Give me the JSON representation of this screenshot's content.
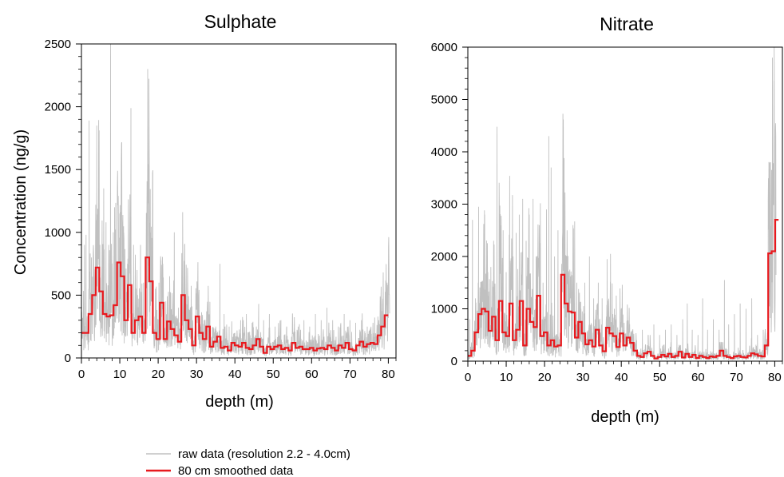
{
  "chart_data": [
    {
      "type": "line",
      "title": "Sulphate",
      "xlabel": "depth (m)",
      "ylabel": "Concentration (ng/g)",
      "xlim": [
        0,
        82
      ],
      "ylim": [
        0,
        2500
      ],
      "x_ticks": [
        "0",
        "10",
        "20",
        "30",
        "40",
        "50",
        "60",
        "70",
        "80"
      ],
      "y_ticks": [
        "0",
        "500",
        "1000",
        "1500",
        "2000",
        "2500"
      ],
      "raw_color": "#c0c0c0",
      "smoothed_color": "#e8191e",
      "raw_peaks": [
        {
          "x": 0.3,
          "y": 250
        },
        {
          "x": 0.8,
          "y": 900
        },
        {
          "x": 1.2,
          "y": 980
        },
        {
          "x": 2.0,
          "y": 1890
        },
        {
          "x": 2.6,
          "y": 800
        },
        {
          "x": 4.0,
          "y": 1850
        },
        {
          "x": 4.8,
          "y": 900
        },
        {
          "x": 5.8,
          "y": 1350
        },
        {
          "x": 6.4,
          "y": 1080
        },
        {
          "x": 7.1,
          "y": 900
        },
        {
          "x": 7.6,
          "y": 2500
        },
        {
          "x": 8.3,
          "y": 1000
        },
        {
          "x": 9.0,
          "y": 750
        },
        {
          "x": 10.0,
          "y": 1150
        },
        {
          "x": 11.0,
          "y": 800
        },
        {
          "x": 12.0,
          "y": 750
        },
        {
          "x": 12.9,
          "y": 1990
        },
        {
          "x": 13.6,
          "y": 900
        },
        {
          "x": 14.5,
          "y": 700
        },
        {
          "x": 15.4,
          "y": 900
        },
        {
          "x": 16.2,
          "y": 600
        },
        {
          "x": 17.2,
          "y": 500
        },
        {
          "x": 18.2,
          "y": 450
        },
        {
          "x": 19.3,
          "y": 550
        },
        {
          "x": 20.2,
          "y": 600
        },
        {
          "x": 21.2,
          "y": 750
        },
        {
          "x": 22.0,
          "y": 450
        },
        {
          "x": 23.0,
          "y": 650
        },
        {
          "x": 24.2,
          "y": 1000
        },
        {
          "x": 25.3,
          "y": 400
        },
        {
          "x": 26.2,
          "y": 350
        },
        {
          "x": 27.5,
          "y": 400
        },
        {
          "x": 29.0,
          "y": 300
        },
        {
          "x": 30.5,
          "y": 250
        },
        {
          "x": 32.0,
          "y": 300
        },
        {
          "x": 33.5,
          "y": 250
        },
        {
          "x": 35.0,
          "y": 250
        },
        {
          "x": 36.1,
          "y": 750
        },
        {
          "x": 37.2,
          "y": 350
        },
        {
          "x": 38.5,
          "y": 250
        },
        {
          "x": 40.0,
          "y": 200
        },
        {
          "x": 41.5,
          "y": 300
        },
        {
          "x": 43.0,
          "y": 350
        },
        {
          "x": 44.5,
          "y": 280
        },
        {
          "x": 46.2,
          "y": 430
        },
        {
          "x": 47.5,
          "y": 300
        },
        {
          "x": 49.0,
          "y": 350
        },
        {
          "x": 50.5,
          "y": 250
        },
        {
          "x": 52.0,
          "y": 300
        },
        {
          "x": 53.5,
          "y": 250
        },
        {
          "x": 55.0,
          "y": 350
        },
        {
          "x": 56.5,
          "y": 250
        },
        {
          "x": 58.0,
          "y": 300
        },
        {
          "x": 59.5,
          "y": 250
        },
        {
          "x": 61.0,
          "y": 350
        },
        {
          "x": 62.5,
          "y": 300
        },
        {
          "x": 64.0,
          "y": 400
        },
        {
          "x": 65.5,
          "y": 300
        },
        {
          "x": 67.0,
          "y": 250
        },
        {
          "x": 68.5,
          "y": 350
        },
        {
          "x": 70.0,
          "y": 300
        },
        {
          "x": 71.5,
          "y": 280
        },
        {
          "x": 73.0,
          "y": 300
        },
        {
          "x": 74.5,
          "y": 250
        },
        {
          "x": 76.0,
          "y": 280
        },
        {
          "x": 77.5,
          "y": 300
        },
        {
          "x": 78.6,
          "y": 250
        },
        {
          "x": 79.3,
          "y": 500
        },
        {
          "x": 79.8,
          "y": 420
        }
      ],
      "smoothed_steps": [
        200,
        200,
        350,
        500,
        720,
        530,
        350,
        330,
        340,
        420,
        760,
        650,
        300,
        580,
        200,
        300,
        330,
        200,
        800,
        610,
        200,
        150,
        440,
        150,
        290,
        230,
        180,
        130,
        500,
        300,
        230,
        100,
        330,
        200,
        150,
        250,
        90,
        130,
        170,
        80,
        90,
        60,
        120,
        100,
        90,
        120,
        80,
        70,
        100,
        150,
        90,
        40,
        90,
        70,
        90,
        100,
        70,
        80,
        60,
        120,
        80,
        90,
        70,
        70,
        80,
        60,
        75,
        80,
        70,
        100,
        80,
        60,
        100,
        80,
        120,
        70,
        60,
        100,
        130,
        90,
        110,
        120,
        110,
        180,
        250,
        340
      ],
      "smoothed_step_m": 0.93
    },
    {
      "type": "line",
      "title": "Nitrate",
      "xlabel": "depth (m)",
      "ylabel": "",
      "xlim": [
        0,
        82
      ],
      "ylim": [
        0,
        6000
      ],
      "x_ticks": [
        "0",
        "10",
        "20",
        "30",
        "40",
        "50",
        "60",
        "70",
        "80"
      ],
      "y_ticks": [
        "0",
        "1000",
        "2000",
        "3000",
        "4000",
        "5000",
        "6000"
      ],
      "raw_color": "#c0c0c0",
      "smoothed_color": "#e8191e",
      "raw_peaks": [
        {
          "x": 0.5,
          "y": 800
        },
        {
          "x": 1.2,
          "y": 2700
        },
        {
          "x": 2.0,
          "y": 1200
        },
        {
          "x": 2.8,
          "y": 2950
        },
        {
          "x": 3.6,
          "y": 1500
        },
        {
          "x": 4.4,
          "y": 2800
        },
        {
          "x": 5.2,
          "y": 1700
        },
        {
          "x": 6.0,
          "y": 1800
        },
        {
          "x": 6.8,
          "y": 2200
        },
        {
          "x": 7.6,
          "y": 4480
        },
        {
          "x": 8.4,
          "y": 2000
        },
        {
          "x": 9.2,
          "y": 2500
        },
        {
          "x": 10.0,
          "y": 1700
        },
        {
          "x": 10.9,
          "y": 3540
        },
        {
          "x": 11.8,
          "y": 2000
        },
        {
          "x": 12.6,
          "y": 2450
        },
        {
          "x": 13.4,
          "y": 2800
        },
        {
          "x": 14.3,
          "y": 3100
        },
        {
          "x": 15.2,
          "y": 2300
        },
        {
          "x": 16.0,
          "y": 2800
        },
        {
          "x": 17.0,
          "y": 3100
        },
        {
          "x": 17.8,
          "y": 2000
        },
        {
          "x": 18.6,
          "y": 2600
        },
        {
          "x": 19.6,
          "y": 1500
        },
        {
          "x": 20.5,
          "y": 2900
        },
        {
          "x": 21.1,
          "y": 4300
        },
        {
          "x": 21.7,
          "y": 3700
        },
        {
          "x": 22.6,
          "y": 2000
        },
        {
          "x": 23.5,
          "y": 2500
        },
        {
          "x": 24.4,
          "y": 1500
        },
        {
          "x": 25.3,
          "y": 2000
        },
        {
          "x": 26.3,
          "y": 1700
        },
        {
          "x": 27.3,
          "y": 1200
        },
        {
          "x": 28.4,
          "y": 1500
        },
        {
          "x": 29.5,
          "y": 1000
        },
        {
          "x": 30.5,
          "y": 1500
        },
        {
          "x": 31.7,
          "y": 2000
        },
        {
          "x": 32.8,
          "y": 1200
        },
        {
          "x": 34.0,
          "y": 1500
        },
        {
          "x": 35.0,
          "y": 1200
        },
        {
          "x": 36.3,
          "y": 1950
        },
        {
          "x": 37.2,
          "y": 2050
        },
        {
          "x": 38.2,
          "y": 1000
        },
        {
          "x": 39.5,
          "y": 600
        },
        {
          "x": 41.0,
          "y": 400
        },
        {
          "x": 42.5,
          "y": 500
        },
        {
          "x": 44.0,
          "y": 400
        },
        {
          "x": 45.5,
          "y": 600
        },
        {
          "x": 47.0,
          "y": 500
        },
        {
          "x": 48.5,
          "y": 700
        },
        {
          "x": 50.0,
          "y": 500
        },
        {
          "x": 51.5,
          "y": 600
        },
        {
          "x": 53.0,
          "y": 700
        },
        {
          "x": 54.5,
          "y": 500
        },
        {
          "x": 56.0,
          "y": 800
        },
        {
          "x": 57.2,
          "y": 1100
        },
        {
          "x": 58.5,
          "y": 600
        },
        {
          "x": 60.0,
          "y": 500
        },
        {
          "x": 61.2,
          "y": 1200
        },
        {
          "x": 62.5,
          "y": 600
        },
        {
          "x": 64.0,
          "y": 800
        },
        {
          "x": 65.5,
          "y": 600
        },
        {
          "x": 66.9,
          "y": 1550
        },
        {
          "x": 68.0,
          "y": 700
        },
        {
          "x": 69.5,
          "y": 900
        },
        {
          "x": 71.0,
          "y": 1100
        },
        {
          "x": 72.5,
          "y": 1000
        },
        {
          "x": 74.0,
          "y": 1200
        },
        {
          "x": 75.5,
          "y": 500
        },
        {
          "x": 77.0,
          "y": 600
        },
        {
          "x": 78.3,
          "y": 900
        },
        {
          "x": 78.9,
          "y": 3760
        },
        {
          "x": 79.4,
          "y": 5800
        },
        {
          "x": 79.8,
          "y": 5350
        },
        {
          "x": 80.1,
          "y": 1200
        }
      ],
      "smoothed_steps": [
        100,
        200,
        550,
        900,
        1000,
        950,
        580,
        850,
        400,
        1150,
        550,
        480,
        1100,
        400,
        600,
        1150,
        300,
        1000,
        750,
        650,
        1250,
        480,
        550,
        300,
        400,
        280,
        300,
        1650,
        1100,
        950,
        930,
        450,
        750,
        530,
        320,
        400,
        280,
        600,
        300,
        190,
        640,
        530,
        480,
        270,
        530,
        300,
        450,
        350,
        200,
        100,
        80,
        150,
        180,
        100,
        50,
        80,
        120,
        90,
        140,
        80,
        100,
        180,
        70,
        140,
        80,
        120,
        60,
        100,
        80,
        60,
        90,
        80,
        100,
        200,
        100,
        80,
        60,
        90,
        100,
        80,
        70,
        100,
        150,
        130,
        100,
        90,
        300,
        2060,
        2100,
        2700
      ],
      "smoothed_step_m": 0.9
    }
  ],
  "legend": {
    "raw_label": "raw data (resolution 2.2 - 4.0cm)",
    "smoothed_label": "80 cm smoothed data"
  }
}
